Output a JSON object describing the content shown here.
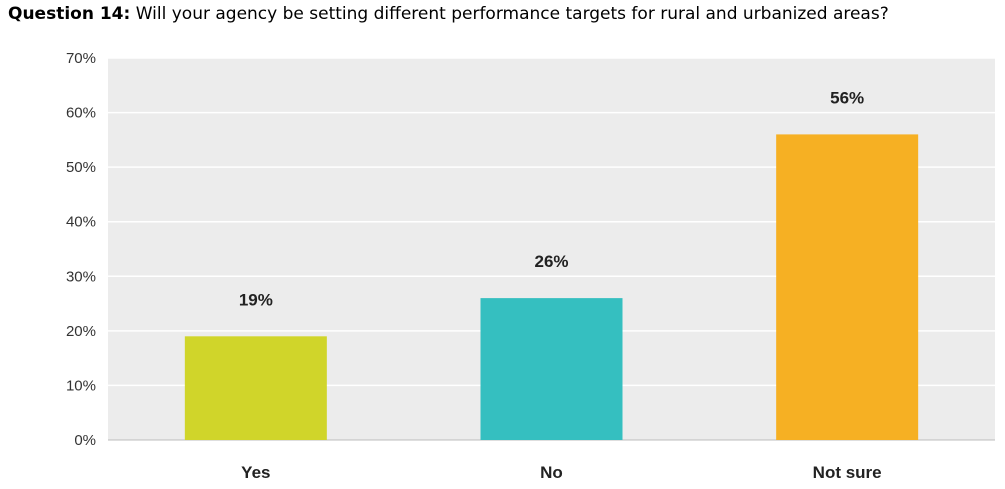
{
  "question": {
    "label": "Question 14:",
    "text": "Will your agency be setting different performance targets for rural and urbanized areas?"
  },
  "chart_data": {
    "type": "bar",
    "categories": [
      "Yes",
      "No",
      "Not sure"
    ],
    "values": [
      19,
      26,
      56
    ],
    "data_labels": [
      "19%",
      "26%",
      "56%"
    ],
    "colors": [
      "#d0d52a",
      "#35bfc0",
      "#f6b023"
    ],
    "ylim": [
      0,
      70
    ],
    "yticks": [
      0,
      10,
      20,
      30,
      40,
      50,
      60,
      70
    ],
    "ytick_labels": [
      "0%",
      "10%",
      "20%",
      "30%",
      "40%",
      "50%",
      "60%",
      "70%"
    ],
    "grid": true,
    "plot_background": "#ececec",
    "xlabel": "",
    "ylabel": ""
  }
}
